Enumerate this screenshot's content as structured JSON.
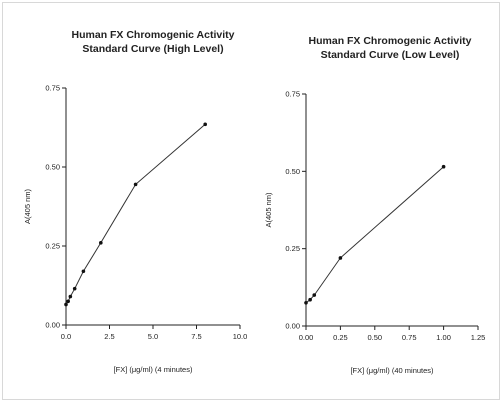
{
  "chart_data": [
    {
      "type": "line",
      "title_lines": [
        "Human FX Chromogenic Activity",
        "Standard Curve (High Level)"
      ],
      "xlabel": "[FX] (μg/ml) (4 minutes)",
      "ylabel": "A(405 nm)",
      "xlim": [
        0,
        10
      ],
      "ylim": [
        0,
        0.75
      ],
      "x_ticks": [
        0.0,
        2.5,
        5.0,
        7.5,
        10.0
      ],
      "x_tick_labels": [
        "0.0",
        "2.5",
        "5.0",
        "7.5",
        "10.0"
      ],
      "y_ticks": [
        0,
        0.25,
        0.5,
        0.75
      ],
      "y_tick_labels": [
        "0.00",
        "0.25",
        "0.50",
        "0.75"
      ],
      "grid": false,
      "series": [
        {
          "x": [
            0,
            0.125,
            0.25,
            0.5,
            1,
            2,
            4,
            8
          ],
          "y": [
            0.065,
            0.075,
            0.09,
            0.115,
            0.17,
            0.26,
            0.445,
            0.635
          ]
        }
      ]
    },
    {
      "type": "line",
      "title_lines": [
        "Human FX Chromogenic Activity",
        "Standard Curve (Low Level)"
      ],
      "xlabel": "[FX] (μg/ml) (40 minutes)",
      "ylabel": "A(405 nm)",
      "xlim": [
        0,
        1.25
      ],
      "ylim": [
        0,
        0.75
      ],
      "x_ticks": [
        0,
        0.25,
        0.5,
        0.75,
        1.0,
        1.25
      ],
      "x_tick_labels": [
        "0.00",
        "0.25",
        "0.50",
        "0.75",
        "1.00",
        "1.25"
      ],
      "y_ticks": [
        0,
        0.25,
        0.5,
        0.75
      ],
      "y_tick_labels": [
        "0.00",
        "0.25",
        "0.50",
        "0.75"
      ],
      "grid": false,
      "series": [
        {
          "x": [
            0,
            0.03,
            0.06,
            0.25,
            1.0
          ],
          "y": [
            0.075,
            0.085,
            0.1,
            0.22,
            0.515
          ]
        }
      ]
    }
  ]
}
